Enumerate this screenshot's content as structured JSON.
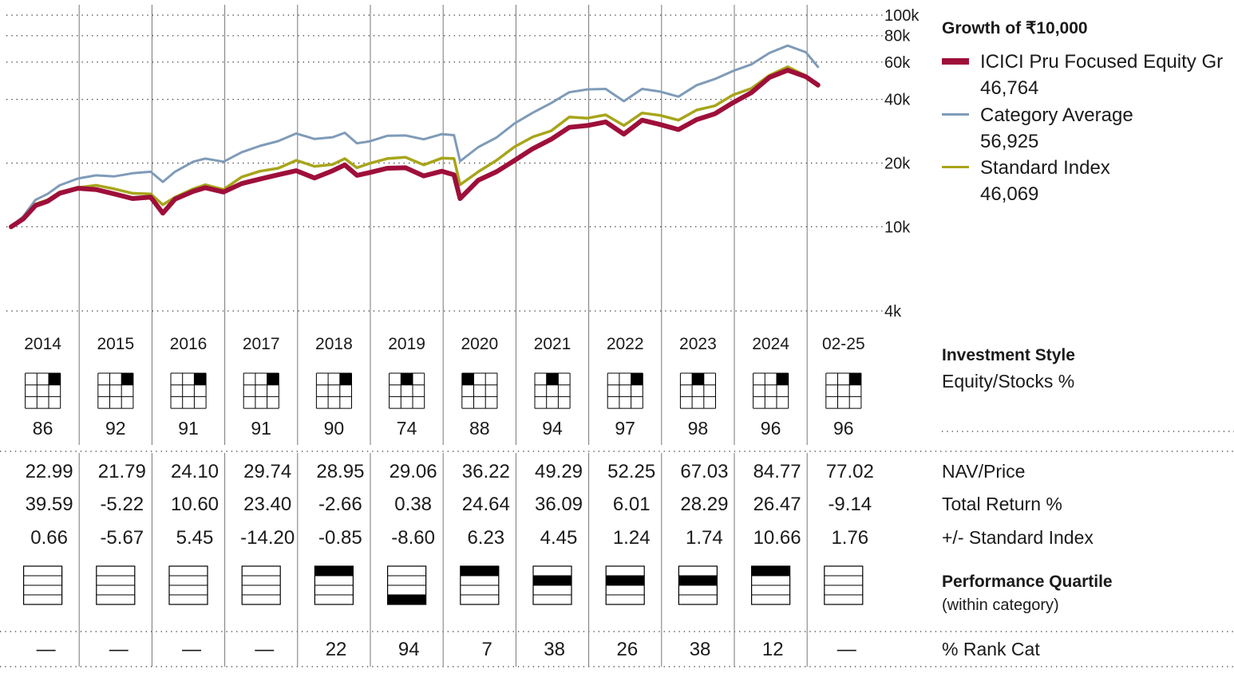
{
  "chart_data": {
    "type": "line",
    "title": "Growth of  ₹10,000",
    "y_scale": "log",
    "ylim": [
      4000,
      100000
    ],
    "y_ticks": [
      "100k",
      "80k",
      "60k",
      "40k",
      "20k",
      "10k",
      "4k"
    ],
    "y_tick_values": [
      100000,
      80000,
      60000,
      40000,
      20000,
      10000,
      4000
    ],
    "x_range": [
      "2014-01",
      "2025-02"
    ],
    "years": [
      "2014",
      "2015",
      "2016",
      "2017",
      "2018",
      "2019",
      "2020",
      "2021",
      "2022",
      "2023",
      "2024",
      "02-25"
    ],
    "colors": {
      "fund": "#9e0f3a",
      "category": "#7f9bb8",
      "index": "#a7a51a"
    },
    "series": [
      {
        "name": "ICICI Pru Focused Equity Gr",
        "ending_value": "46,764",
        "points": [
          [
            "2014-01",
            10000
          ],
          [
            "2014-03",
            10900
          ],
          [
            "2014-05",
            12600
          ],
          [
            "2014-07",
            13200
          ],
          [
            "2014-09",
            14400
          ],
          [
            "2014-12",
            15200
          ],
          [
            "2015-03",
            15000
          ],
          [
            "2015-06",
            14300
          ],
          [
            "2015-09",
            13600
          ],
          [
            "2015-12",
            13800
          ],
          [
            "2016-02",
            11600
          ],
          [
            "2016-04",
            13500
          ],
          [
            "2016-07",
            14700
          ],
          [
            "2016-09",
            15300
          ],
          [
            "2016-12",
            14600
          ],
          [
            "2017-03",
            16000
          ],
          [
            "2017-06",
            16800
          ],
          [
            "2017-09",
            17600
          ],
          [
            "2017-12",
            18400
          ],
          [
            "2018-03",
            17000
          ],
          [
            "2018-06",
            18400
          ],
          [
            "2018-08",
            19600
          ],
          [
            "2018-10",
            17500
          ],
          [
            "2018-12",
            18000
          ],
          [
            "2019-03",
            18900
          ],
          [
            "2019-06",
            19000
          ],
          [
            "2019-09",
            17400
          ],
          [
            "2019-12",
            18300
          ],
          [
            "2020-02",
            17600
          ],
          [
            "2020-03",
            13600
          ],
          [
            "2020-06",
            16600
          ],
          [
            "2020-09",
            18200
          ],
          [
            "2020-12",
            20600
          ],
          [
            "2021-03",
            23400
          ],
          [
            "2021-06",
            25900
          ],
          [
            "2021-09",
            29500
          ],
          [
            "2021-12",
            30100
          ],
          [
            "2022-03",
            31300
          ],
          [
            "2022-06",
            27400
          ],
          [
            "2022-09",
            31900
          ],
          [
            "2022-12",
            30400
          ],
          [
            "2023-03",
            28800
          ],
          [
            "2023-06",
            32100
          ],
          [
            "2023-09",
            34200
          ],
          [
            "2023-12",
            38600
          ],
          [
            "2024-03",
            43000
          ],
          [
            "2024-06",
            50800
          ],
          [
            "2024-09",
            54900
          ],
          [
            "2024-12",
            51200
          ],
          [
            "2025-02",
            46764
          ]
        ]
      },
      {
        "name": "Category Average",
        "ending_value": "56,925",
        "points": [
          [
            "2014-01",
            10000
          ],
          [
            "2014-03",
            11200
          ],
          [
            "2014-05",
            13400
          ],
          [
            "2014-07",
            14300
          ],
          [
            "2014-09",
            15700
          ],
          [
            "2014-12",
            16900
          ],
          [
            "2015-03",
            17500
          ],
          [
            "2015-06",
            17300
          ],
          [
            "2015-09",
            17900
          ],
          [
            "2015-12",
            18200
          ],
          [
            "2016-02",
            16300
          ],
          [
            "2016-04",
            18200
          ],
          [
            "2016-07",
            20300
          ],
          [
            "2016-09",
            21000
          ],
          [
            "2016-12",
            20300
          ],
          [
            "2017-03",
            22500
          ],
          [
            "2017-06",
            24100
          ],
          [
            "2017-09",
            25400
          ],
          [
            "2017-12",
            27600
          ],
          [
            "2018-03",
            26000
          ],
          [
            "2018-06",
            26500
          ],
          [
            "2018-08",
            27800
          ],
          [
            "2018-10",
            24800
          ],
          [
            "2018-12",
            25300
          ],
          [
            "2019-03",
            26900
          ],
          [
            "2019-06",
            27000
          ],
          [
            "2019-09",
            25900
          ],
          [
            "2019-12",
            27400
          ],
          [
            "2020-02",
            27100
          ],
          [
            "2020-03",
            20400
          ],
          [
            "2020-06",
            23800
          ],
          [
            "2020-09",
            26400
          ],
          [
            "2020-12",
            30800
          ],
          [
            "2021-03",
            34600
          ],
          [
            "2021-06",
            38400
          ],
          [
            "2021-09",
            43200
          ],
          [
            "2021-12",
            44600
          ],
          [
            "2022-03",
            44800
          ],
          [
            "2022-06",
            39200
          ],
          [
            "2022-09",
            44800
          ],
          [
            "2022-12",
            43500
          ],
          [
            "2023-03",
            41200
          ],
          [
            "2023-06",
            46700
          ],
          [
            "2023-09",
            49900
          ],
          [
            "2023-12",
            54500
          ],
          [
            "2024-03",
            58500
          ],
          [
            "2024-06",
            66300
          ],
          [
            "2024-09",
            71800
          ],
          [
            "2024-12",
            66800
          ],
          [
            "2025-02",
            56925
          ]
        ]
      },
      {
        "name": "Standard Index",
        "ending_value": "46,069",
        "points": [
          [
            "2014-01",
            10000
          ],
          [
            "2014-03",
            10800
          ],
          [
            "2014-05",
            12800
          ],
          [
            "2014-07",
            13400
          ],
          [
            "2014-09",
            14600
          ],
          [
            "2014-12",
            15300
          ],
          [
            "2015-03",
            15700
          ],
          [
            "2015-06",
            15100
          ],
          [
            "2015-09",
            14400
          ],
          [
            "2015-12",
            14300
          ],
          [
            "2016-02",
            12700
          ],
          [
            "2016-04",
            13800
          ],
          [
            "2016-07",
            15100
          ],
          [
            "2016-09",
            15800
          ],
          [
            "2016-12",
            15000
          ],
          [
            "2017-03",
            17200
          ],
          [
            "2017-06",
            18300
          ],
          [
            "2017-09",
            18900
          ],
          [
            "2017-12",
            20600
          ],
          [
            "2018-03",
            19300
          ],
          [
            "2018-06",
            19700
          ],
          [
            "2018-08",
            21000
          ],
          [
            "2018-10",
            19000
          ],
          [
            "2018-12",
            19900
          ],
          [
            "2019-03",
            21000
          ],
          [
            "2019-06",
            21300
          ],
          [
            "2019-09",
            19600
          ],
          [
            "2019-12",
            21100
          ],
          [
            "2020-02",
            21000
          ],
          [
            "2020-03",
            15800
          ],
          [
            "2020-06",
            18200
          ],
          [
            "2020-09",
            20600
          ],
          [
            "2020-12",
            23900
          ],
          [
            "2021-03",
            26600
          ],
          [
            "2021-06",
            28400
          ],
          [
            "2021-09",
            33000
          ],
          [
            "2021-12",
            32600
          ],
          [
            "2022-03",
            33800
          ],
          [
            "2022-06",
            30100
          ],
          [
            "2022-09",
            34500
          ],
          [
            "2022-12",
            33600
          ],
          [
            "2023-03",
            31900
          ],
          [
            "2023-06",
            35600
          ],
          [
            "2023-09",
            37300
          ],
          [
            "2023-12",
            42000
          ],
          [
            "2024-03",
            45000
          ],
          [
            "2024-06",
            52000
          ],
          [
            "2024-09",
            57000
          ],
          [
            "2024-12",
            51700
          ],
          [
            "2025-02",
            46069
          ]
        ]
      }
    ]
  },
  "investment_style": {
    "title": "Investment Style",
    "subtitle": "Equity/Stocks %",
    "equity_pct": [
      "86",
      "92",
      "91",
      "91",
      "90",
      "74",
      "88",
      "94",
      "97",
      "98",
      "96",
      "96"
    ],
    "style_box_filled": [
      [
        0,
        2
      ],
      [
        0,
        2
      ],
      [
        0,
        2
      ],
      [
        0,
        2
      ],
      [
        0,
        2
      ],
      [
        0,
        1
      ],
      [
        0,
        0
      ],
      [
        0,
        1
      ],
      [
        0,
        2
      ],
      [
        0,
        1
      ],
      [
        0,
        2
      ],
      [
        0,
        2
      ]
    ]
  },
  "rows": {
    "nav": {
      "label": "NAV/Price",
      "values": [
        "22.99",
        "21.79",
        "24.10",
        "29.74",
        "28.95",
        "29.06",
        "36.22",
        "49.29",
        "52.25",
        "67.03",
        "84.77",
        "77.02"
      ]
    },
    "total_return": {
      "label": "Total Return %",
      "values": [
        "39.59",
        "-5.22",
        "10.60",
        "23.40",
        "-2.66",
        "0.38",
        "24.64",
        "36.09",
        "6.01",
        "28.29",
        "26.47",
        "-9.14"
      ]
    },
    "vs_index": {
      "label": "+/- Standard Index",
      "values": [
        "0.66",
        "-5.67",
        "5.45",
        "-14.20",
        "-0.85",
        "-8.60",
        "6.23",
        "4.45",
        "1.24",
        "1.74",
        "10.66",
        "1.76"
      ]
    }
  },
  "performance_quartile": {
    "title": "Performance Quartile",
    "subtitle": "(within category)",
    "quartiles": [
      0,
      0,
      0,
      0,
      1,
      4,
      1,
      2,
      2,
      2,
      1,
      0
    ]
  },
  "rank_cat": {
    "label": "% Rank Cat",
    "values": [
      "—",
      "—",
      "—",
      "—",
      "22",
      "94",
      "7",
      "38",
      "26",
      "38",
      "12",
      "—"
    ]
  }
}
